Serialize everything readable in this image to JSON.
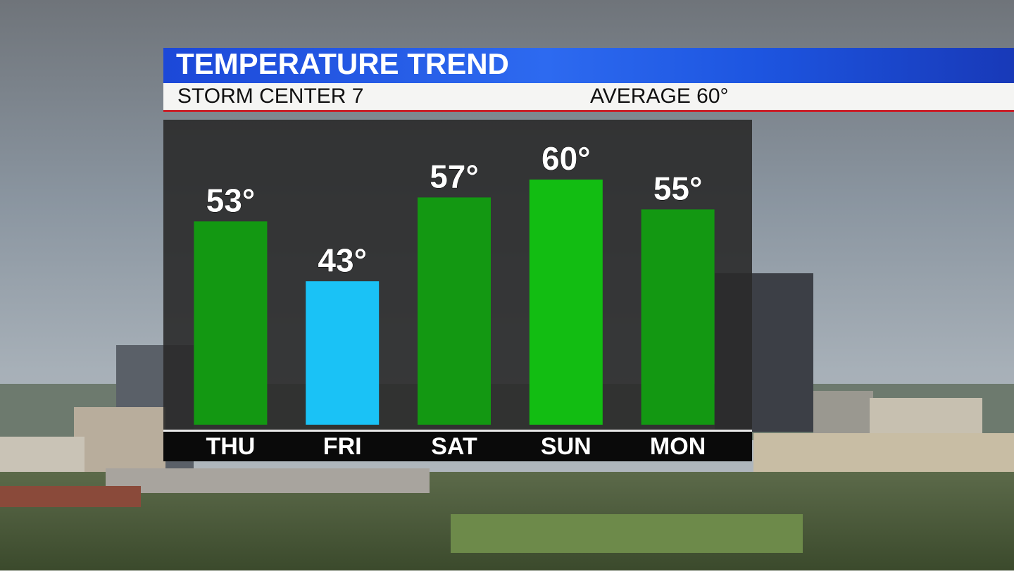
{
  "chart_data": {
    "type": "bar",
    "title": "TEMPERATURE TREND",
    "subtitle": "STORM CENTER 7",
    "annotation": "AVERAGE 60°",
    "categories": [
      "THU",
      "FRI",
      "SAT",
      "SUN",
      "MON"
    ],
    "values": [
      53,
      43,
      57,
      60,
      55
    ],
    "value_labels": [
      "53°",
      "43°",
      "57°",
      "60°",
      "55°"
    ],
    "colors": [
      "#139812",
      "#1ac2f6",
      "#139812",
      "#12bd12",
      "#139812"
    ],
    "ylim": [
      19,
      70
    ]
  }
}
